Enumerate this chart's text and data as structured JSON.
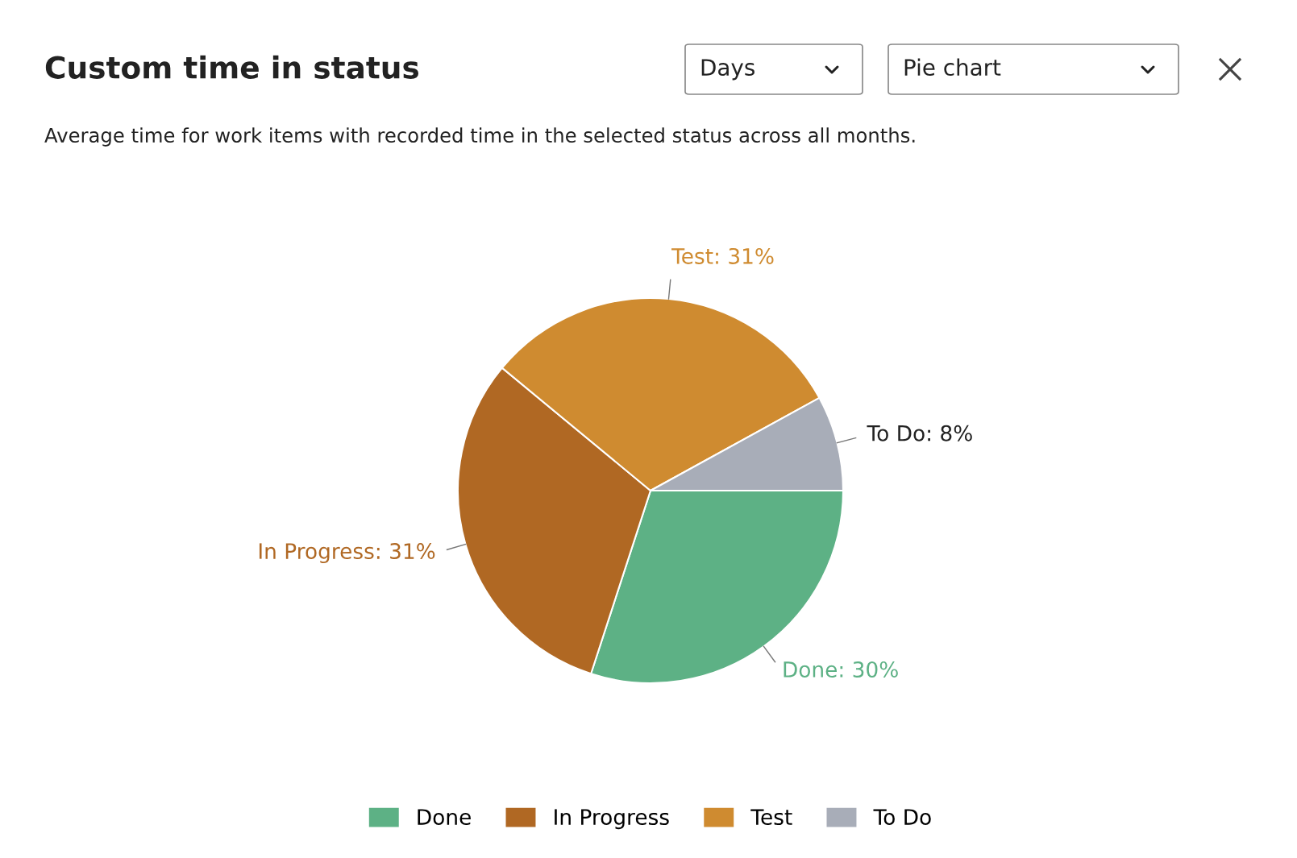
{
  "chart_data": {
    "type": "pie",
    "title": "Custom time in status",
    "subtitle": "Average time for work items with recorded time in the selected status across all months.",
    "categories": [
      "Done",
      "In Progress",
      "Test",
      "To Do"
    ],
    "values": [
      30,
      31,
      31,
      8
    ],
    "value_labels": [
      "Done: 30%",
      "In Progress: 31%",
      "Test: 31%",
      "To Do: 8%"
    ],
    "colors": [
      "#5db185",
      "#b06823",
      "#cf8b30",
      "#a8adb8"
    ],
    "legend": "bottom",
    "annotations": [
      "Days",
      "Pie chart"
    ]
  }
}
